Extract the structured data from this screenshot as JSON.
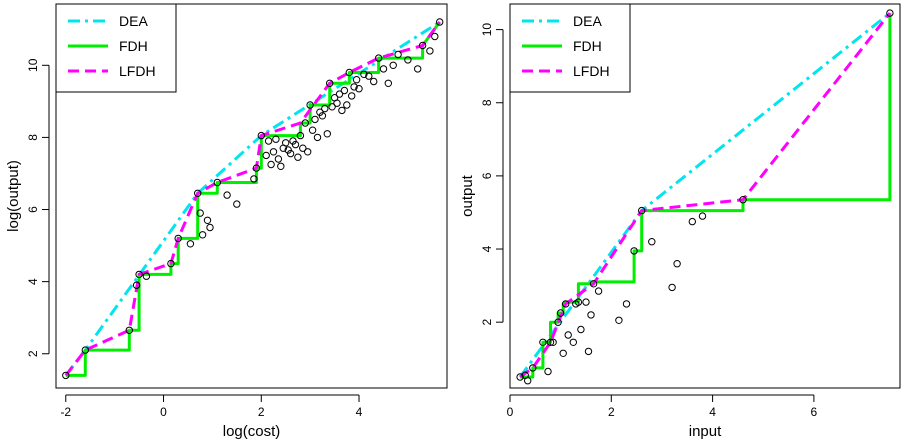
{
  "chart_data": [
    {
      "type": "line",
      "xlabel": "log(cost)",
      "ylabel": "log(output)",
      "xlim": [
        -2.2,
        5.8
      ],
      "ylim": [
        1.05,
        11.7
      ],
      "xticks": [
        -2,
        0,
        2,
        4
      ],
      "yticks": [
        2,
        4,
        6,
        8,
        10
      ],
      "grid": false,
      "legend_position": "top-left",
      "legend": [
        {
          "name": "DEA",
          "color": "#00e5ee",
          "dash": "dashdot"
        },
        {
          "name": "FDH",
          "color": "#00ee00",
          "dash": "solid"
        },
        {
          "name": "LFDH",
          "color": "#ff00ff",
          "dash": "dashed"
        }
      ],
      "series": [
        {
          "name": "DEA",
          "x": [
            -2.0,
            -1.6,
            0.7,
            2.0,
            5.65
          ],
          "y": [
            1.4,
            2.1,
            6.45,
            8.05,
            11.2
          ]
        },
        {
          "name": "FDH",
          "x": [
            -2.0,
            -1.6,
            -1.6,
            -0.7,
            -0.7,
            -0.5,
            -0.5,
            0.15,
            0.15,
            0.3,
            0.3,
            0.7,
            0.7,
            1.1,
            1.1,
            1.9,
            1.9,
            2.0,
            2.0,
            2.8,
            2.8,
            3.0,
            3.0,
            3.4,
            3.4,
            3.8,
            3.8,
            4.4,
            4.4,
            5.3,
            5.3,
            5.65
          ],
          "y": [
            1.4,
            1.4,
            2.1,
            2.1,
            2.65,
            2.65,
            4.2,
            4.2,
            4.5,
            4.5,
            5.2,
            5.2,
            6.45,
            6.45,
            6.75,
            6.75,
            7.15,
            7.15,
            8.05,
            8.05,
            8.4,
            8.4,
            8.9,
            8.9,
            9.5,
            9.5,
            9.8,
            9.8,
            10.2,
            10.2,
            10.55,
            11.2
          ]
        },
        {
          "name": "LFDH",
          "x": [
            -2.0,
            -1.6,
            -0.7,
            -0.5,
            0.15,
            0.3,
            0.7,
            1.1,
            1.9,
            2.0,
            2.8,
            3.4,
            3.8,
            4.4,
            5.3,
            5.65
          ],
          "y": [
            1.4,
            2.1,
            2.65,
            4.2,
            4.5,
            5.2,
            6.45,
            6.75,
            7.15,
            8.05,
            8.4,
            9.5,
            9.8,
            10.2,
            10.55,
            11.2
          ]
        }
      ],
      "points": {
        "x": [
          -2.0,
          -1.6,
          -0.7,
          -0.5,
          -0.55,
          -0.35,
          0.15,
          0.3,
          0.55,
          0.7,
          0.75,
          0.8,
          0.9,
          0.95,
          1.1,
          1.3,
          1.5,
          1.85,
          1.9,
          2.0,
          2.1,
          2.15,
          2.2,
          2.25,
          2.3,
          2.35,
          2.4,
          2.45,
          2.5,
          2.55,
          2.6,
          2.65,
          2.7,
          2.75,
          2.8,
          2.85,
          2.9,
          2.95,
          3.0,
          3.05,
          3.1,
          3.15,
          3.2,
          3.25,
          3.3,
          3.35,
          3.4,
          3.45,
          3.5,
          3.55,
          3.6,
          3.65,
          3.7,
          3.75,
          3.8,
          3.85,
          3.9,
          3.95,
          4.0,
          4.1,
          4.2,
          4.3,
          4.4,
          4.5,
          4.6,
          4.7,
          4.8,
          5.0,
          5.2,
          5.3,
          5.45,
          5.55,
          5.65
        ],
        "y": [
          1.4,
          2.1,
          2.65,
          4.2,
          3.9,
          4.15,
          4.5,
          5.2,
          5.05,
          6.45,
          5.9,
          5.3,
          5.7,
          5.5,
          6.75,
          6.4,
          6.15,
          6.85,
          7.15,
          8.05,
          7.5,
          7.9,
          7.25,
          7.6,
          7.95,
          7.4,
          7.2,
          7.7,
          7.85,
          7.65,
          7.55,
          7.9,
          7.8,
          7.45,
          8.05,
          7.7,
          8.4,
          7.6,
          8.9,
          8.2,
          8.5,
          8.0,
          8.7,
          8.6,
          8.8,
          8.1,
          9.5,
          8.85,
          9.1,
          8.95,
          9.2,
          8.75,
          9.3,
          8.9,
          9.8,
          9.15,
          9.4,
          9.6,
          9.35,
          9.75,
          9.7,
          9.55,
          10.2,
          9.9,
          9.5,
          10.0,
          10.3,
          10.15,
          9.9,
          10.55,
          10.4,
          10.8,
          11.2
        ]
      }
    },
    {
      "type": "line",
      "xlabel": "input",
      "ylabel": "output",
      "xlim": [
        0,
        7.7
      ],
      "ylim": [
        0.2,
        10.7
      ],
      "xticks": [
        0,
        2,
        4,
        6
      ],
      "yticks": [
        2,
        4,
        6,
        8,
        10
      ],
      "grid": false,
      "legend_position": "top-left",
      "legend": [
        {
          "name": "DEA",
          "color": "#00e5ee",
          "dash": "dashdot"
        },
        {
          "name": "FDH",
          "color": "#00ee00",
          "dash": "solid"
        },
        {
          "name": "LFDH",
          "color": "#ff00ff",
          "dash": "dashed"
        }
      ],
      "series": [
        {
          "name": "DEA",
          "x": [
            0.2,
            2.6,
            7.5
          ],
          "y": [
            0.5,
            5.05,
            10.45
          ]
        },
        {
          "name": "FDH",
          "x": [
            0.2,
            0.45,
            0.45,
            0.65,
            0.65,
            0.8,
            0.8,
            0.95,
            0.95,
            1.05,
            1.05,
            1.1,
            1.1,
            1.35,
            1.35,
            1.65,
            1.65,
            2.45,
            2.45,
            2.6,
            2.6,
            4.6,
            4.6,
            7.5,
            7.5
          ],
          "y": [
            0.5,
            0.5,
            0.75,
            0.75,
            1.45,
            1.45,
            2.0,
            2.0,
            2.25,
            2.25,
            2.5,
            2.5,
            2.55,
            2.55,
            3.05,
            3.05,
            3.1,
            3.1,
            3.95,
            3.95,
            5.05,
            5.05,
            5.35,
            5.35,
            10.45
          ]
        },
        {
          "name": "LFDH",
          "x": [
            0.2,
            0.45,
            0.8,
            1.1,
            1.65,
            2.6,
            4.6,
            7.5
          ],
          "y": [
            0.5,
            0.75,
            1.45,
            2.5,
            3.05,
            5.05,
            5.35,
            10.45
          ]
        }
      ],
      "points": {
        "x": [
          0.2,
          0.3,
          0.35,
          0.45,
          0.65,
          0.75,
          0.8,
          0.85,
          0.95,
          1.0,
          1.05,
          1.1,
          1.15,
          1.25,
          1.3,
          1.35,
          1.4,
          1.5,
          1.55,
          1.6,
          1.65,
          1.75,
          2.15,
          2.3,
          2.45,
          2.6,
          2.8,
          3.2,
          3.3,
          3.6,
          3.8,
          4.6,
          7.5
        ],
        "y": [
          0.5,
          0.55,
          0.4,
          0.75,
          1.45,
          0.65,
          1.45,
          1.45,
          2.0,
          2.25,
          1.15,
          2.5,
          1.65,
          1.45,
          2.5,
          2.55,
          1.8,
          2.55,
          1.2,
          2.2,
          3.05,
          2.85,
          2.05,
          2.5,
          3.95,
          5.05,
          4.2,
          2.95,
          3.6,
          4.75,
          4.9,
          5.35,
          10.45
        ]
      }
    }
  ]
}
